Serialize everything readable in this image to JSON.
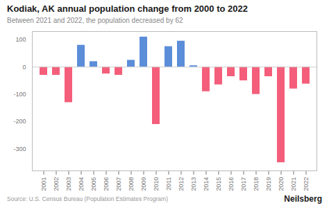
{
  "chart_data": {
    "type": "bar",
    "title": "Kodiak, AK annual population change from 2000 to 2022",
    "subtitle": "Between 2021 and 2022, the population decreased by 62",
    "annotations": [
      "Source: U.S. Census Bureau (Population Estimates Program)",
      "Neilsberg"
    ],
    "categories": [
      "2001",
      "2002",
      "2003",
      "2004",
      "2005",
      "2006",
      "2007",
      "2008",
      "2009",
      "2010",
      "2011",
      "2012",
      "2013",
      "2014",
      "2015",
      "2016",
      "2017",
      "2018",
      "2019",
      "2020",
      "2021",
      "2022"
    ],
    "values": [
      -30,
      -30,
      -130,
      80,
      20,
      -25,
      -30,
      25,
      110,
      -210,
      75,
      95,
      5,
      -90,
      -65,
      -35,
      -50,
      -100,
      -35,
      -350,
      -80,
      -62
    ],
    "colors": [
      "#f45e7a",
      "#f45e7a",
      "#f45e7a",
      "#5b8dd9",
      "#5b8dd9",
      "#f45e7a",
      "#f45e7a",
      "#5b8dd9",
      "#5b8dd9",
      "#f45e7a",
      "#5b8dd9",
      "#5b8dd9",
      "#5b8dd9",
      "#f45e7a",
      "#f45e7a",
      "#f45e7a",
      "#f45e7a",
      "#f45e7a",
      "#f45e7a",
      "#f45e7a",
      "#f45e7a",
      "#f45e7a"
    ],
    "ylim": [
      -380,
      130
    ],
    "yticks": [
      100,
      0,
      -100,
      -200,
      -300
    ],
    "grid": false
  }
}
